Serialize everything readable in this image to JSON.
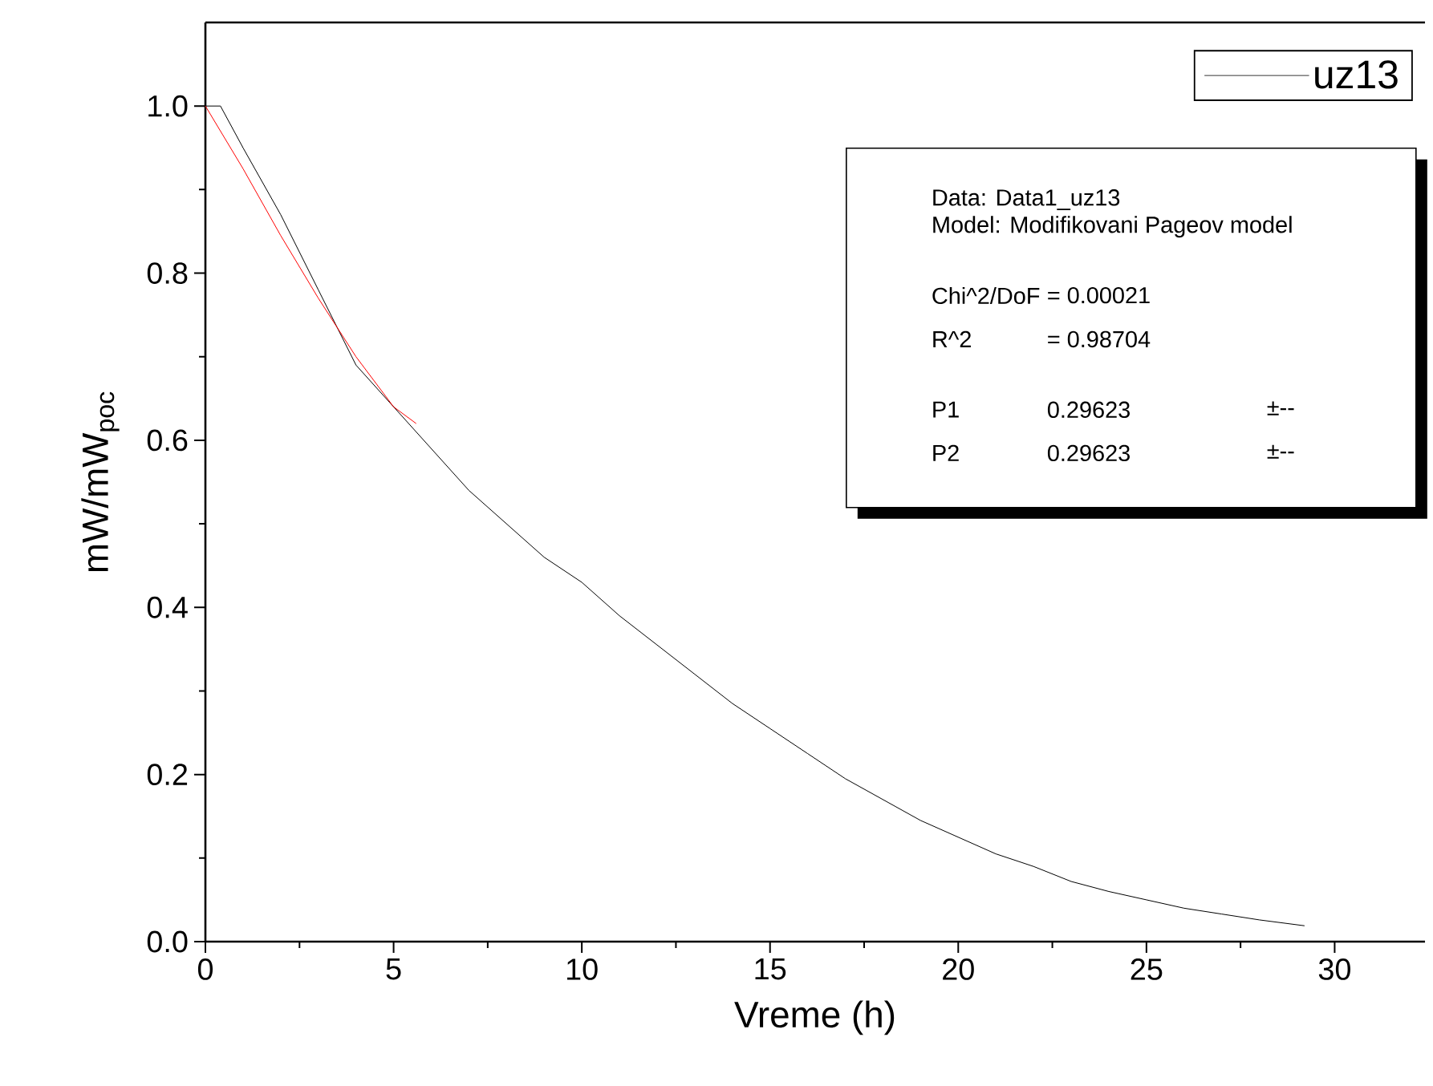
{
  "chart_data": {
    "type": "line",
    "xlabel": "Vreme (h)",
    "ylabel": "mW/mW$_{poc}$",
    "xlim": [
      0,
      32.4
    ],
    "ylim": [
      0,
      1.1
    ],
    "xticks": [
      0,
      5,
      10,
      15,
      20,
      25,
      30
    ],
    "yticks": [
      {
        "value": 0,
        "label": "0.0"
      },
      {
        "value": 0.2,
        "label": "0.2"
      },
      {
        "value": 0.4,
        "label": "0.4"
      },
      {
        "value": 0.6,
        "label": "0.6"
      },
      {
        "value": 0.8,
        "label": "0.8"
      },
      {
        "value": 1,
        "label": "1.0"
      }
    ],
    "grid": false,
    "legend": "top right",
    "series": [
      {
        "name": "uz13",
        "color": "#000000",
        "x": [
          0,
          0.4,
          1,
          2,
          3,
          4,
          5,
          6,
          7,
          8,
          9,
          10,
          11,
          12,
          13,
          14,
          15,
          16,
          17,
          18,
          19,
          20,
          21,
          22,
          23,
          24,
          25,
          26,
          27,
          28,
          29.2
        ],
        "values": [
          1.0,
          1.0,
          0.95,
          0.87,
          0.78,
          0.69,
          0.64,
          0.59,
          0.54,
          0.5,
          0.46,
          0.43,
          0.39,
          0.355,
          0.32,
          0.285,
          0.255,
          0.225,
          0.195,
          0.17,
          0.145,
          0.125,
          0.105,
          0.09,
          0.072,
          0.06,
          0.05,
          0.04,
          0.033,
          0.026,
          0.019
        ]
      },
      {
        "color": "#ff0000",
        "x": [
          0,
          1,
          2,
          3,
          4,
          5,
          5.6
        ],
        "values": [
          1.0,
          0.925,
          0.845,
          0.77,
          0.7,
          0.64,
          0.62
        ]
      }
    ],
    "annotations": [
      "Data: Data1_uz13",
      "Model: Modifikovani Pageov model",
      "Chi^2/DoF",
      "= 0.00021",
      "R^2",
      "=  0.98704",
      "P1",
      "0.29623",
      "±--",
      "P2",
      "0.29623",
      "±--"
    ]
  }
}
